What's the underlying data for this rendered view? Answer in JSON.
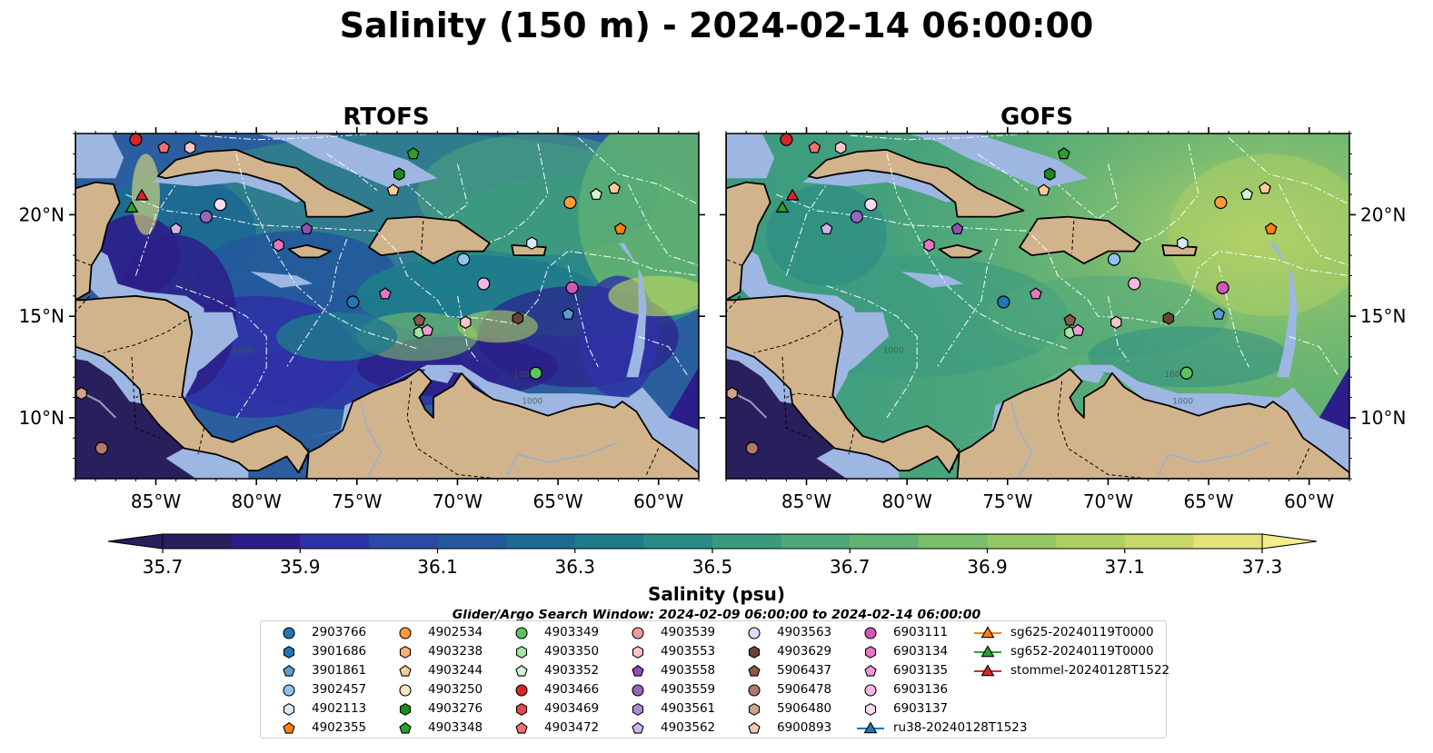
{
  "title": "Salinity (150 m) - 2024-02-14 06:00:00",
  "panels": [
    {
      "title": "RTOFS",
      "ocean_style": "rtofs"
    },
    {
      "title": "GOFS",
      "ocean_style": "gofs"
    }
  ],
  "map": {
    "lon_range": [
      -89,
      -58
    ],
    "lat_range": [
      7,
      24
    ],
    "lon_ticks": [
      "85°W",
      "80°W",
      "75°W",
      "70°W",
      "65°W",
      "60°W"
    ],
    "lon_tick_values": [
      -85,
      -80,
      -75,
      -70,
      -65,
      -60
    ],
    "lat_ticks": [
      "20°N",
      "15°N",
      "10°N"
    ],
    "lat_tick_values": [
      20,
      15,
      10
    ],
    "land_color": "#d2b48c",
    "shelf_color": "#9db7e2",
    "contour_labels": [
      "1000",
      "1000",
      "1000"
    ]
  },
  "colorbar": {
    "label": "Salinity (psu)",
    "ticks": [
      "35.7",
      "35.9",
      "36.1",
      "36.3",
      "36.5",
      "36.7",
      "36.9",
      "37.1",
      "37.3"
    ],
    "range": [
      35.7,
      37.3
    ],
    "colors": [
      "#281f5c",
      "#2c1e8a",
      "#2e32a6",
      "#2b4aa6",
      "#23599c",
      "#1d6a92",
      "#1f7b8c",
      "#2a8b86",
      "#3a9a80",
      "#4fa87a",
      "#62b271",
      "#79be6a",
      "#94c764",
      "#afd063",
      "#c8d868",
      "#e4e37a"
    ]
  },
  "search_window_text": "Glider/Argo Search Window: 2024-02-09 06:00:00 to 2024-02-14 06:00:00",
  "legend": [
    {
      "id": "2903766",
      "color": "#1f77b4",
      "marker": "circle"
    },
    {
      "id": "3901686",
      "color": "#1f77b4",
      "marker": "hexagon"
    },
    {
      "id": "3901861",
      "color": "#5a9fd4",
      "marker": "pentagon"
    },
    {
      "id": "3902457",
      "color": "#8ec3ef",
      "marker": "circle"
    },
    {
      "id": "4902113",
      "color": "#d6ecfb",
      "marker": "hexagon"
    },
    {
      "id": "4902355",
      "color": "#ff7f0e",
      "marker": "pentagon"
    },
    {
      "id": "4902534",
      "color": "#ff9d3a",
      "marker": "circle"
    },
    {
      "id": "4903238",
      "color": "#ffb070",
      "marker": "hexagon"
    },
    {
      "id": "4903244",
      "color": "#ffcc99",
      "marker": "pentagon"
    },
    {
      "id": "4903250",
      "color": "#ffe4c4",
      "marker": "circle"
    },
    {
      "id": "4903276",
      "color": "#1a8a1a",
      "marker": "hexagon"
    },
    {
      "id": "4903348",
      "color": "#2ca02c",
      "marker": "pentagon"
    },
    {
      "id": "4903349",
      "color": "#5cc45c",
      "marker": "circle"
    },
    {
      "id": "4903350",
      "color": "#a6e3a6",
      "marker": "hexagon"
    },
    {
      "id": "4903352",
      "color": "#d4f5d4",
      "marker": "pentagon"
    },
    {
      "id": "4903466",
      "color": "#d62728",
      "marker": "circle"
    },
    {
      "id": "4903469",
      "color": "#e04a4a",
      "marker": "hexagon"
    },
    {
      "id": "4903472",
      "color": "#f07070",
      "marker": "pentagon"
    },
    {
      "id": "4903539",
      "color": "#f49a9a",
      "marker": "circle"
    },
    {
      "id": "4903553",
      "color": "#fbc6c6",
      "marker": "hexagon"
    },
    {
      "id": "4903558",
      "color": "#8c50b4",
      "marker": "pentagon"
    },
    {
      "id": "4903559",
      "color": "#9467bd",
      "marker": "circle"
    },
    {
      "id": "4903561",
      "color": "#b08ad6",
      "marker": "hexagon"
    },
    {
      "id": "4903562",
      "color": "#cfb4f0",
      "marker": "pentagon"
    },
    {
      "id": "4903563",
      "color": "#e6d6f7",
      "marker": "circle"
    },
    {
      "id": "4903629",
      "color": "#6b4136",
      "marker": "hexagon"
    },
    {
      "id": "5906437",
      "color": "#8c564b",
      "marker": "pentagon"
    },
    {
      "id": "5906478",
      "color": "#b07a6a",
      "marker": "circle"
    },
    {
      "id": "5906480",
      "color": "#d4a090",
      "marker": "hexagon"
    },
    {
      "id": "6900893",
      "color": "#f2c8b0",
      "marker": "pentagon"
    },
    {
      "id": "6903111",
      "color": "#d058b8",
      "marker": "circle"
    },
    {
      "id": "6903134",
      "color": "#e377c2",
      "marker": "hexagon"
    },
    {
      "id": "6903135",
      "color": "#f09ad6",
      "marker": "pentagon"
    },
    {
      "id": "6903136",
      "color": "#f5b8e4",
      "marker": "circle"
    },
    {
      "id": "6903137",
      "color": "#fadcf2",
      "marker": "hexagon"
    },
    {
      "id": "ru38-20240128T1523",
      "color": "#1f77b4",
      "marker": "triangle-line"
    },
    {
      "id": "sg625-20240119T0000",
      "color": "#ff7f0e",
      "marker": "triangle-line"
    },
    {
      "id": "sg652-20240119T0000",
      "color": "#2ca02c",
      "marker": "triangle-line"
    },
    {
      "id": "stommel-20240128T1522",
      "color": "#d62728",
      "marker": "triangle-line"
    }
  ],
  "observations": [
    {
      "lon": -86.0,
      "lat": 23.7,
      "color": "#d62728",
      "marker": "circle"
    },
    {
      "lon": -84.6,
      "lat": 23.3,
      "color": "#f07070",
      "marker": "pentagon"
    },
    {
      "lon": -83.3,
      "lat": 23.3,
      "color": "#fbc6c6",
      "marker": "hexagon"
    },
    {
      "lon": -85.7,
      "lat": 20.9,
      "color": "#d62728",
      "marker": "triangle"
    },
    {
      "lon": -86.2,
      "lat": 20.3,
      "color": "#2ca02c",
      "marker": "triangle"
    },
    {
      "lon": -81.8,
      "lat": 20.5,
      "color": "#fadcf2",
      "marker": "circle"
    },
    {
      "lon": -84.0,
      "lat": 19.3,
      "color": "#cfb4f0",
      "marker": "pentagon"
    },
    {
      "lon": -82.5,
      "lat": 19.9,
      "color": "#9467bd",
      "marker": "circle"
    },
    {
      "lon": -77.5,
      "lat": 19.3,
      "color": "#8c50b4",
      "marker": "pentagon"
    },
    {
      "lon": -78.9,
      "lat": 18.5,
      "color": "#e377c2",
      "marker": "hexagon"
    },
    {
      "lon": -72.2,
      "lat": 23.0,
      "color": "#2ca02c",
      "marker": "pentagon"
    },
    {
      "lon": -72.9,
      "lat": 22.0,
      "color": "#1a8a1a",
      "marker": "hexagon"
    },
    {
      "lon": -73.2,
      "lat": 21.2,
      "color": "#ffcc99",
      "marker": "pentagon"
    },
    {
      "lon": -64.4,
      "lat": 20.6,
      "color": "#ff9d3a",
      "marker": "circle"
    },
    {
      "lon": -63.1,
      "lat": 21.0,
      "color": "#d4f5d4",
      "marker": "pentagon"
    },
    {
      "lon": -62.2,
      "lat": 21.3,
      "color": "#ffcc99",
      "marker": "pentagon"
    },
    {
      "lon": -61.9,
      "lat": 19.3,
      "color": "#ff7f0e",
      "marker": "pentagon"
    },
    {
      "lon": -66.3,
      "lat": 18.6,
      "color": "#d6ecfb",
      "marker": "hexagon"
    },
    {
      "lon": -69.7,
      "lat": 17.8,
      "color": "#8ec3ef",
      "marker": "circle"
    },
    {
      "lon": -68.7,
      "lat": 16.6,
      "color": "#f5b8e4",
      "marker": "circle"
    },
    {
      "lon": -64.3,
      "lat": 16.4,
      "color": "#d058b8",
      "marker": "circle"
    },
    {
      "lon": -73.6,
      "lat": 16.1,
      "color": "#e377c2",
      "marker": "pentagon"
    },
    {
      "lon": -75.2,
      "lat": 15.7,
      "color": "#1f77b4",
      "marker": "circle"
    },
    {
      "lon": -71.9,
      "lat": 14.8,
      "color": "#8c564b",
      "marker": "pentagon"
    },
    {
      "lon": -71.9,
      "lat": 14.2,
      "color": "#a6e3a6",
      "marker": "hexagon"
    },
    {
      "lon": -71.5,
      "lat": 14.3,
      "color": "#f09ad6",
      "marker": "pentagon"
    },
    {
      "lon": -69.6,
      "lat": 14.7,
      "color": "#fbc6c6",
      "marker": "hexagon"
    },
    {
      "lon": -67.0,
      "lat": 14.9,
      "color": "#6b4136",
      "marker": "hexagon"
    },
    {
      "lon": -64.5,
      "lat": 15.1,
      "color": "#5a9fd4",
      "marker": "pentagon"
    },
    {
      "lon": -66.1,
      "lat": 12.2,
      "color": "#5cc45c",
      "marker": "circle"
    },
    {
      "lon": -88.7,
      "lat": 11.2,
      "color": "#d4a090",
      "marker": "hexagon"
    },
    {
      "lon": -87.7,
      "lat": 8.5,
      "color": "#b07a6a",
      "marker": "circle"
    }
  ]
}
